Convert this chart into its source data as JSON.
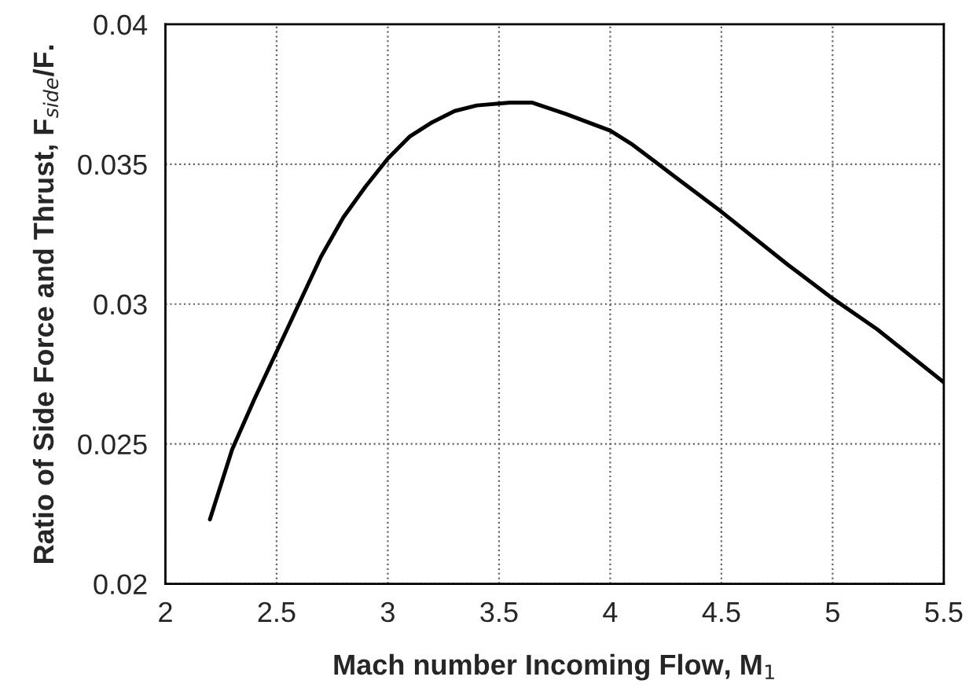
{
  "chart_data": {
    "type": "line",
    "xlabel": "Mach number Incoming Flow, M$_{1}$",
    "ylabel": "Ratio of Side Force and Thrust, F$_{side}$/F.",
    "x": [
      2.2,
      2.3,
      2.4,
      2.5,
      2.6,
      2.7,
      2.8,
      2.9,
      3.0,
      3.1,
      3.2,
      3.3,
      3.4,
      3.55,
      3.65,
      3.8,
      4.0,
      4.1,
      4.2,
      4.3,
      4.5,
      4.8,
      5.0,
      5.2,
      5.5
    ],
    "series": [
      {
        "color": "#000000",
        "values": [
          0.0223,
          0.0248,
          0.0266,
          0.0283,
          0.03,
          0.0317,
          0.0331,
          0.0342,
          0.0352,
          0.036,
          0.0365,
          0.0369,
          0.0371,
          0.0372,
          0.0372,
          0.0368,
          0.0362,
          0.0357,
          0.0351,
          0.0345,
          0.0333,
          0.0314,
          0.0302,
          0.0291,
          0.0272
        ]
      }
    ],
    "xlim": [
      2,
      5.5
    ],
    "xticks": [
      2,
      2.5,
      3,
      3.5,
      4,
      4.5,
      5,
      5.5
    ],
    "ylim": [
      0.02,
      0.04
    ],
    "yticks": [
      0.02,
      0.025,
      0.03,
      0.035,
      0.04
    ],
    "grid": true,
    "marker": "none",
    "line_style": "solid"
  }
}
